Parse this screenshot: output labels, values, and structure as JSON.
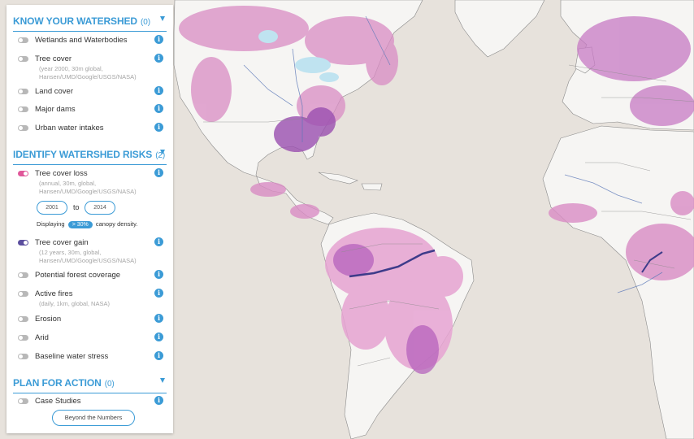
{
  "sections": {
    "know": {
      "title": "KNOW YOUR WATERSHED",
      "count": "(0)"
    },
    "identify": {
      "title": "IDENTIFY WATERSHED RISKS",
      "count": "(2)"
    },
    "plan": {
      "title": "PLAN FOR ACTION",
      "count": "(0)"
    }
  },
  "know_layers": [
    {
      "label": "Wetlands and Waterbodies",
      "on": false
    },
    {
      "label": "Tree cover",
      "sub": "(year 2000, 30m global, Hansen/UMD/Google/USGS/NASA)",
      "on": false
    },
    {
      "label": "Land cover",
      "on": false
    },
    {
      "label": "Major dams",
      "on": false
    },
    {
      "label": "Urban water intakes",
      "on": false
    }
  ],
  "risk_layers": [
    {
      "label": "Tree cover loss",
      "sub": "(annual, 30m, global, Hansen/UMD/Google/USGS/NASA)",
      "on": true
    },
    {
      "label": "Tree cover gain",
      "sub": "(12 years, 30m, global, Hansen/UMD/Google/USGS/NASA)",
      "on": true
    },
    {
      "label": "Potential forest coverage",
      "on": false
    },
    {
      "label": "Active fires",
      "sub": "(daily, 1km, global, NASA)",
      "on": false
    },
    {
      "label": "Erosion",
      "on": false
    },
    {
      "label": "Arid",
      "on": false
    },
    {
      "label": "Baseline water stress",
      "on": false
    }
  ],
  "plan_layers": [
    {
      "label": "Case Studies",
      "on": false
    }
  ],
  "tree_loss_controls": {
    "year_from": "2001",
    "to_label": "to",
    "year_to": "2014",
    "displaying": "Displaying",
    "density_value": "> 30%",
    "density_suffix": "canopy density."
  },
  "buttons": {
    "beyond": "Beyond the Numbers"
  },
  "colors": {
    "accent": "#3b9bd6",
    "loss": "#e0579a",
    "gain": "#5b4e9e",
    "land": "#f6f5f3",
    "water": "#e7e2dc"
  }
}
